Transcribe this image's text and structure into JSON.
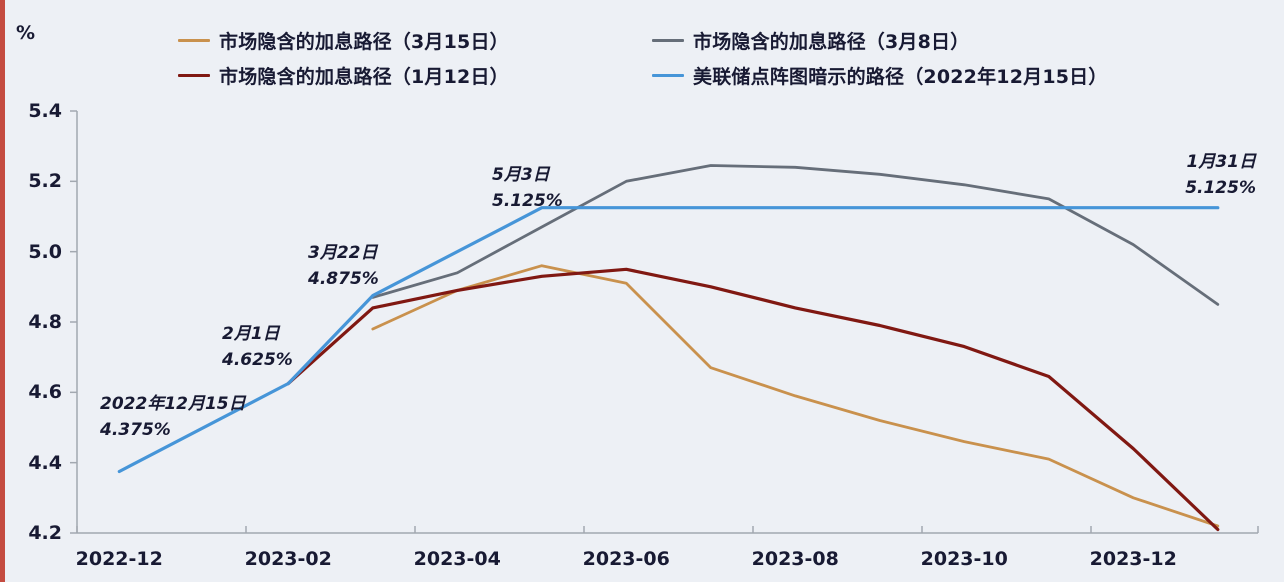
{
  "chart_data": {
    "type": "line",
    "title": "",
    "ylabel": "%",
    "ylim": [
      4.2,
      5.4
    ],
    "y_ticks": [
      "5.4",
      "5.2",
      "5.0",
      "4.8",
      "4.6",
      "4.4",
      "4.2"
    ],
    "y_tick_values": [
      5.4,
      5.2,
      5.0,
      4.8,
      4.6,
      4.4,
      4.2
    ],
    "x_tick_labels": [
      "2022-12",
      "2023-02",
      "2023-04",
      "2023-06",
      "2023-08",
      "2023-10",
      "2023-12"
    ],
    "grid": false,
    "legend_position": "top",
    "axis_color": "#A2A8B0",
    "series": [
      {
        "name": "市场隐含的加息路径（3月8日）",
        "color": "#666E79",
        "width": 2.8,
        "points": [
          [
            "2023-03",
            4.87
          ],
          [
            "2023-04",
            4.94
          ],
          [
            "2023-05",
            5.07
          ],
          [
            "2023-06",
            5.2
          ],
          [
            "2023-07",
            5.245
          ],
          [
            "2023-08",
            5.24
          ],
          [
            "2023-09",
            5.22
          ],
          [
            "2023-10",
            5.19
          ],
          [
            "2023-11",
            5.15
          ],
          [
            "2023-12",
            5.02
          ],
          [
            "2024-01",
            4.85
          ]
        ]
      },
      {
        "name": "市场隐含的加息路径（3月15日）",
        "color": "#C9914D",
        "width": 2.8,
        "points": [
          [
            "2023-03",
            4.78
          ],
          [
            "2023-04",
            4.89
          ],
          [
            "2023-05",
            4.96
          ],
          [
            "2023-06",
            4.91
          ],
          [
            "2023-07",
            4.67
          ],
          [
            "2023-08",
            4.59
          ],
          [
            "2023-09",
            4.52
          ],
          [
            "2023-10",
            4.46
          ],
          [
            "2023-11",
            4.41
          ],
          [
            "2023-12",
            4.3
          ],
          [
            "2024-01",
            4.22
          ]
        ]
      },
      {
        "name": "市场隐含的加息路径（1月12日）",
        "color": "#801812",
        "width": 3.2,
        "points": [
          [
            "2023-02",
            4.625
          ],
          [
            "2023-03",
            4.84
          ],
          [
            "2023-04",
            4.89
          ],
          [
            "2023-05",
            4.93
          ],
          [
            "2023-06",
            4.95
          ],
          [
            "2023-07",
            4.9
          ],
          [
            "2023-08",
            4.84
          ],
          [
            "2023-09",
            4.79
          ],
          [
            "2023-10",
            4.73
          ],
          [
            "2023-11",
            4.645
          ],
          [
            "2023-12",
            4.44
          ],
          [
            "2024-01",
            4.21
          ]
        ]
      },
      {
        "name": "美联储点阵图暗示的路径（2022年12月15日）",
        "color": "#4695D8",
        "width": 3.2,
        "points": [
          [
            "2022-12",
            4.375
          ],
          [
            "2023-02",
            4.625
          ],
          [
            "2023-03",
            4.875
          ],
          [
            "2023-05",
            5.125
          ],
          [
            "2024-01",
            5.125
          ]
        ]
      }
    ],
    "annotations": [
      {
        "id": "dec15",
        "date": "2022年12月15日",
        "value": "4.375%"
      },
      {
        "id": "feb1",
        "date": "2月1日",
        "value": "4.625%"
      },
      {
        "id": "mar22",
        "date": "3月22日",
        "value": "4.875%"
      },
      {
        "id": "may3",
        "date": "5月3日",
        "value": "5.125%"
      },
      {
        "id": "jan31",
        "date": "1月31日",
        "value": "5.125%"
      }
    ]
  },
  "legend": {
    "items": [
      {
        "label": "市场隐含的加息路径（3月15日）",
        "color": "#C9914D"
      },
      {
        "label": "市场隐含的加息路径（3月8日）",
        "color": "#666E79"
      },
      {
        "label": "市场隐含的加息路径（1月12日）",
        "color": "#801812"
      },
      {
        "label": "美联储点阵图暗示的路径（2022年12月15日）",
        "color": "#4695D8"
      }
    ]
  },
  "unit_label": "%"
}
